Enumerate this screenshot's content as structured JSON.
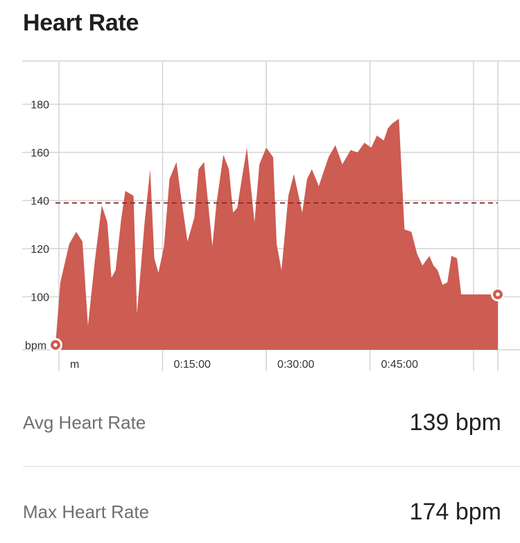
{
  "header": {
    "title": "Heart Rate"
  },
  "chart_data": {
    "type": "area",
    "title": "Heart Rate",
    "ylabel": "bpm",
    "xlabel": "",
    "ylim": [
      78,
      198
    ],
    "xlim": [
      -0.5,
      63.5
    ],
    "y_ticks": [
      100,
      120,
      140,
      160,
      180
    ],
    "x_ticks": [
      {
        "x": 0,
        "label": "m"
      },
      {
        "x": 15,
        "label": "0:15:00"
      },
      {
        "x": 30,
        "label": "0:30:00"
      },
      {
        "x": 45,
        "label": "0:45:00"
      },
      {
        "x": 60,
        "label": ""
      }
    ],
    "grid": true,
    "average": 139,
    "colors": {
      "area": "#cd5c52",
      "average_line": "#8b2727",
      "grid": "#d4d4d4"
    },
    "series": [
      {
        "x": [
          -0.5,
          0.2,
          1.5,
          2.5,
          3.4,
          4.2,
          5.2,
          6.2,
          7.0,
          7.6,
          8.2,
          9.0,
          9.6,
          10.8,
          11.3,
          12.4,
          13.2,
          13.8,
          14.4,
          15.2,
          16.0,
          17.0,
          17.6,
          18.6,
          19.6,
          20.2,
          21.0,
          22.2,
          22.8,
          23.8,
          24.6,
          25.2,
          25.8,
          26.4,
          27.2,
          27.8,
          28.3,
          29.0,
          30.0,
          31.0,
          31.5,
          32.2,
          33.2,
          34.0,
          35.2,
          35.9,
          36.6,
          37.6,
          39.0,
          40.0,
          41.0,
          42.2,
          43.2,
          44.2,
          45.2,
          46.0,
          47.0,
          47.6,
          48.2,
          49.2,
          50.0,
          51.0,
          51.8,
          52.6,
          53.6,
          54.2,
          54.8,
          55.5,
          56.2,
          56.8,
          57.6,
          58.2,
          59.0,
          59.6,
          60.4,
          61.2,
          62.0,
          63.5
        ],
        "y": [
          80,
          106,
          122,
          127,
          123,
          88,
          115,
          138,
          131,
          108,
          111,
          132,
          144,
          142,
          93,
          131,
          153,
          116,
          110,
          121,
          149,
          156,
          143,
          123,
          133,
          153,
          156,
          121,
          139,
          159,
          153,
          135,
          137,
          148,
          162,
          145,
          131,
          155,
          162,
          158,
          122,
          111,
          142,
          151,
          135,
          149,
          153,
          146,
          158,
          163,
          155,
          161,
          160,
          164,
          162,
          167,
          165,
          170,
          172,
          174,
          128,
          127,
          118,
          113,
          117,
          113,
          111,
          105,
          106,
          117,
          116,
          101,
          101,
          101,
          101,
          101,
          101,
          101
        ]
      }
    ],
    "start_value": 80,
    "end_value": 101
  },
  "stats": {
    "avg_label": "Avg Heart Rate",
    "avg_value": "139 bpm",
    "max_label": "Max Heart Rate",
    "max_value": "174 bpm"
  }
}
